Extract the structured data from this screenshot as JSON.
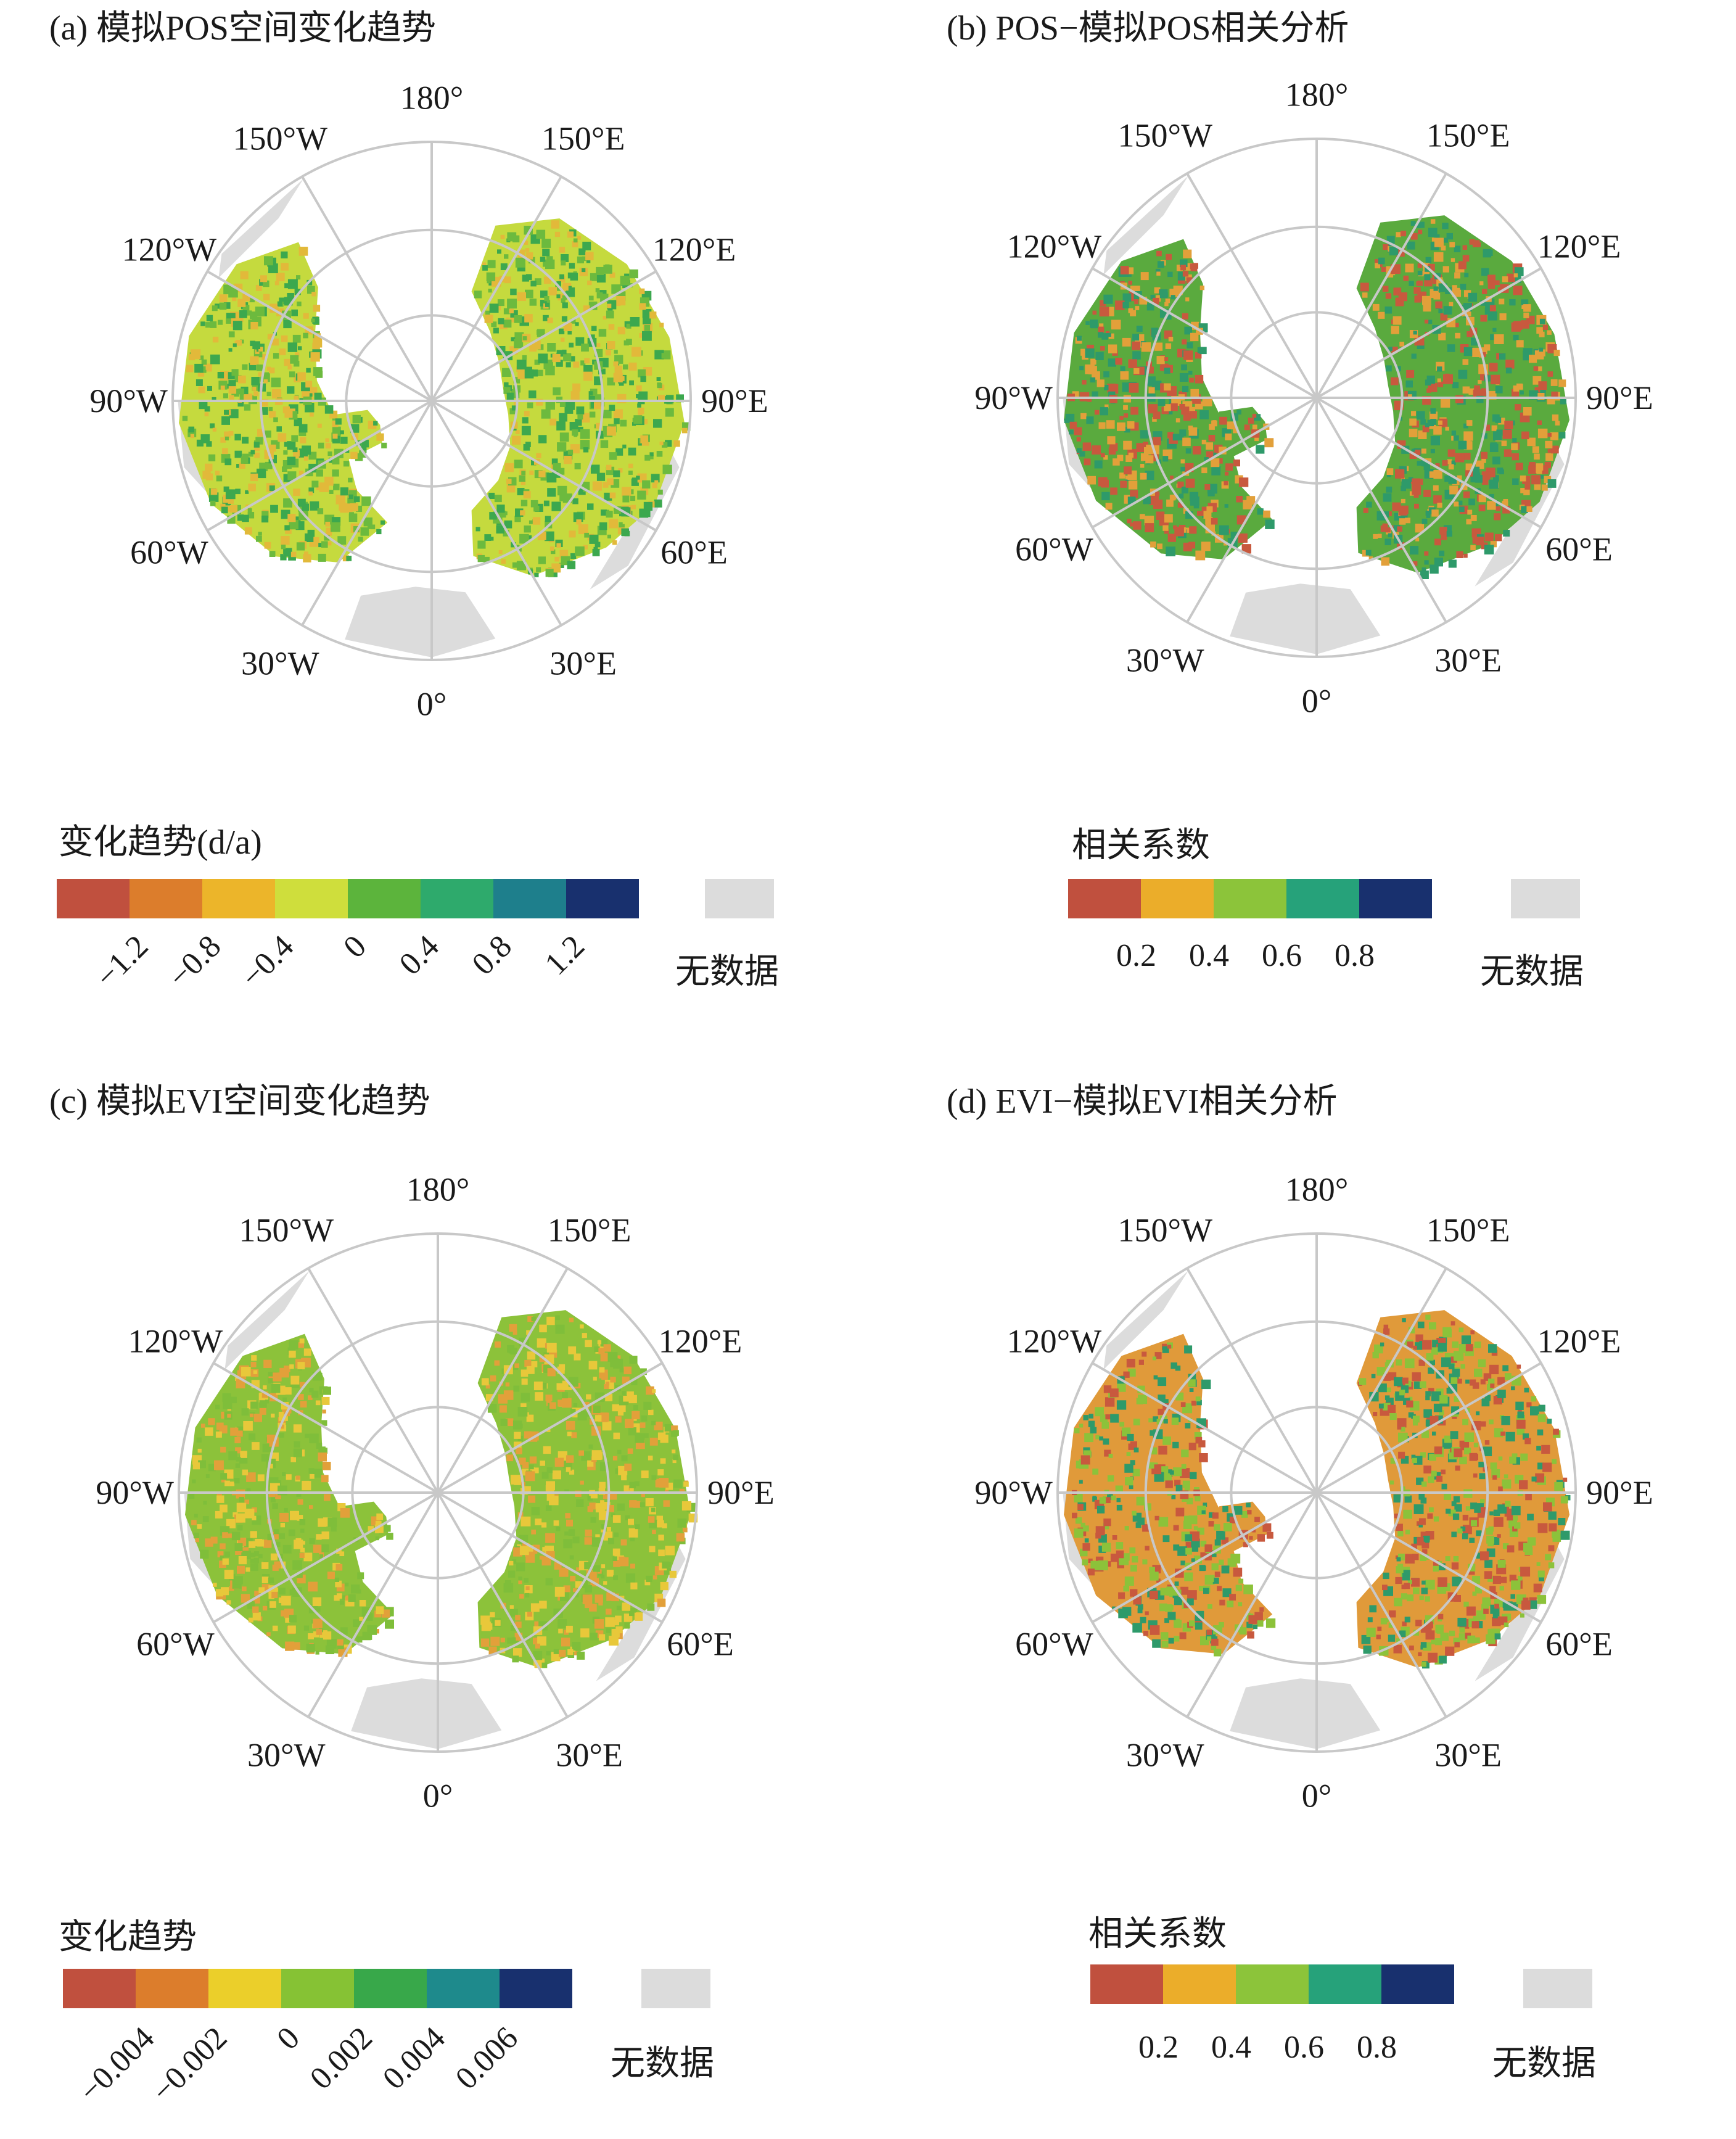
{
  "panels": [
    {
      "id": "a",
      "title": "(a) 模拟POS空间变化趋势",
      "legend_title": "变化趋势(d/a)",
      "ticks": [
        "−1.2",
        "−0.8",
        "−0.4",
        "0",
        "0.4",
        "0.8",
        "1.2"
      ],
      "tick_style": "rotated",
      "colors": [
        "#c0503e",
        "#dc7d2c",
        "#ecb52a",
        "#cfde3c",
        "#5cb43c",
        "#2eaa6c",
        "#1e7f8c",
        "#18306e"
      ],
      "nodata": "无数据",
      "lon_labels": [
        "180°",
        "150°E",
        "120°E",
        "90°E",
        "60°E",
        "30°E",
        "0°",
        "30°W",
        "60°W",
        "90°W",
        "120°W",
        "150°W"
      ]
    },
    {
      "id": "b",
      "title": "(b) POS−模拟POS相关分析",
      "legend_title": "相关系数",
      "ticks": [
        "0.2",
        "0.4",
        "0.6",
        "0.8"
      ],
      "tick_style": "flat",
      "colors": [
        "#c0503e",
        "#ebad2a",
        "#8cc43a",
        "#26a27a",
        "#18306e"
      ],
      "nodata": "无数据",
      "lon_labels": [
        "180°",
        "150°E",
        "120°E",
        "90°E",
        "60°E",
        "30°E",
        "0°",
        "30°W",
        "60°W",
        "90°W",
        "120°W",
        "150°W"
      ]
    },
    {
      "id": "c",
      "title": "(c) 模拟EVI空间变化趋势",
      "legend_title": "变化趋势",
      "ticks": [
        "−0.004",
        "−0.002",
        "0",
        "0.002",
        "0.004",
        "0.006"
      ],
      "tick_style": "rotated",
      "colors": [
        "#c0503e",
        "#dc7d2c",
        "#ebcf2a",
        "#86c234",
        "#38a84a",
        "#1e8a8c",
        "#18306e"
      ],
      "nodata": "无数据",
      "lon_labels": [
        "180°",
        "150°E",
        "120°E",
        "90°E",
        "60°E",
        "30°E",
        "0°",
        "30°W",
        "60°W",
        "90°W",
        "120°W",
        "150°W"
      ]
    },
    {
      "id": "d",
      "title": "(d) EVI−模拟EVI相关分析",
      "legend_title": "相关系数",
      "ticks": [
        "0.2",
        "0.4",
        "0.6",
        "0.8"
      ],
      "tick_style": "flat",
      "colors": [
        "#c0503e",
        "#ebad2a",
        "#8cc43a",
        "#26a27a",
        "#18306e"
      ],
      "nodata": "无数据",
      "lon_labels": [
        "180°",
        "150°E",
        "120°E",
        "90°E",
        "60°E",
        "30°E",
        "0°",
        "30°W",
        "60°W",
        "90°W",
        "120°W",
        "150°W"
      ]
    }
  ],
  "map_fill": {
    "a": [
      "#c5da3e",
      "#6cba3e",
      "#3ca84e",
      "#e2b93a"
    ],
    "b": [
      "#5aaa3e",
      "#e2a03a",
      "#2e9a6a",
      "#c8593e"
    ],
    "c": [
      "#8cc23a",
      "#e8c83a",
      "#7fbe3a",
      "#e2a03a"
    ],
    "d": [
      "#e09a3a",
      "#8cc23a",
      "#c8593e",
      "#2e9a6a"
    ]
  }
}
